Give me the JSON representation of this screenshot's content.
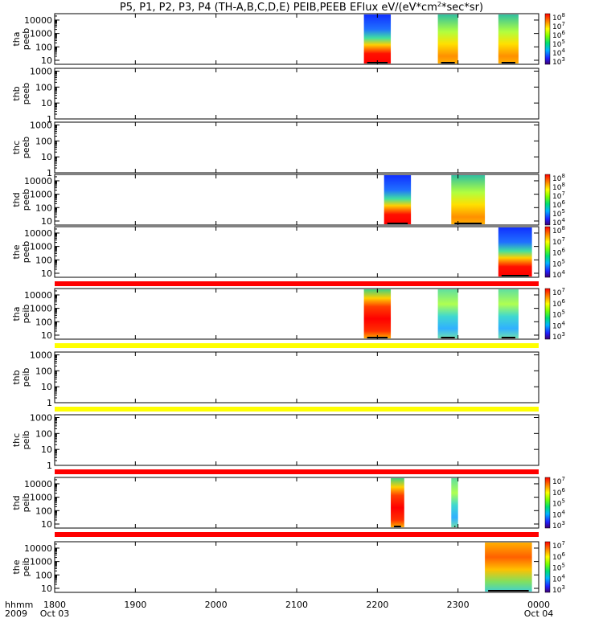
{
  "chart_data": {
    "type": "heatmap",
    "title": "P5, P1, P2, P3, P4 (TH-A,B,C,D,E) PEIB,PEEB EFlux eV/(eV*cm",
    "title_sup": "2",
    "title_tail": "*sec*sr)",
    "x_axis": {
      "ticks": [
        "1800",
        "1900",
        "2000",
        "2100",
        "2200",
        "2300",
        "0000"
      ],
      "tick_hours": [
        18,
        19,
        20,
        21,
        22,
        23,
        24
      ],
      "date_start": "Oct 03",
      "date_end": "Oct 04",
      "range_hours": [
        18,
        24
      ],
      "label_top": "hhmm",
      "label_bottom": "2009"
    },
    "panels": [
      {
        "probe": "tha",
        "product": "peeb",
        "log_y": true,
        "y_ticks": [
          "10000",
          "1000",
          "100",
          "10"
        ],
        "y_tick_values": [
          10000,
          1000,
          100,
          10
        ],
        "ylim": [
          5,
          30000
        ],
        "colorbar": {
          "exponents": [
            "8",
            "7",
            "6",
            "5",
            "4",
            "3"
          ],
          "mantissa": "10",
          "min_exp": 3,
          "max_exp": 8
        },
        "data_blocks": [
          {
            "start": "2150",
            "end": "2210",
            "style": "hot_low"
          },
          {
            "start": "2245",
            "end": "2300",
            "style": "mix"
          },
          {
            "start": "2330",
            "end": "2345",
            "style": "mix"
          }
        ],
        "status_bar": null
      },
      {
        "probe": "thb",
        "product": "peeb",
        "log_y": true,
        "y_ticks": [
          "1000",
          "100",
          "10",
          "1"
        ],
        "y_tick_values": [
          1000,
          100,
          10,
          1
        ],
        "ylim": [
          1,
          1500
        ],
        "colorbar": null,
        "data_blocks": [],
        "status_bar": null
      },
      {
        "probe": "thc",
        "product": "peeb",
        "log_y": true,
        "y_ticks": [
          "1000",
          "100",
          "10",
          "1"
        ],
        "y_tick_values": [
          1000,
          100,
          10,
          1
        ],
        "ylim": [
          1,
          1500
        ],
        "colorbar": null,
        "data_blocks": [],
        "status_bar": null
      },
      {
        "probe": "thd",
        "product": "peeb",
        "log_y": true,
        "y_ticks": [
          "10000",
          "1000",
          "100",
          "10"
        ],
        "y_tick_values": [
          10000,
          1000,
          100,
          10
        ],
        "ylim": [
          5,
          30000
        ],
        "colorbar": {
          "exponents": [
            "8",
            "8",
            "7",
            "6",
            "5",
            "4"
          ],
          "mantissa": "10",
          "min_exp": 3,
          "max_exp": 8
        },
        "data_blocks": [
          {
            "start": "2205",
            "end": "2225",
            "style": "hot_low"
          },
          {
            "start": "2255",
            "end": "2320",
            "style": "mix"
          }
        ],
        "status_bar": null
      },
      {
        "probe": "the",
        "product": "peeb",
        "log_y": true,
        "y_ticks": [
          "10000",
          "1000",
          "100",
          "10"
        ],
        "y_tick_values": [
          10000,
          1000,
          100,
          10
        ],
        "ylim": [
          5,
          30000
        ],
        "colorbar": {
          "exponents": [
            "8",
            "7",
            "6",
            "5",
            "4"
          ],
          "mantissa": "10",
          "min_exp": 3,
          "max_exp": 8
        },
        "data_blocks": [
          {
            "start": "2330",
            "end": "2355",
            "style": "hot_low"
          }
        ],
        "status_bar": "red"
      },
      {
        "probe": "tha",
        "product": "peib",
        "log_y": true,
        "y_ticks": [
          "10000",
          "1000",
          "100",
          "10"
        ],
        "y_tick_values": [
          10000,
          1000,
          100,
          10
        ],
        "ylim": [
          5,
          30000
        ],
        "colorbar": {
          "exponents": [
            "7",
            "6",
            "5",
            "4",
            "3"
          ],
          "mantissa": "10",
          "min_exp": 3,
          "max_exp": 7
        },
        "data_blocks": [
          {
            "start": "2150",
            "end": "2210",
            "style": "hot_full"
          },
          {
            "start": "2245",
            "end": "2300",
            "style": "ion"
          },
          {
            "start": "2330",
            "end": "2345",
            "style": "ion"
          }
        ],
        "status_bar": "yellow"
      },
      {
        "probe": "thb",
        "product": "peib",
        "log_y": true,
        "y_ticks": [
          "1000",
          "100",
          "10",
          "1"
        ],
        "y_tick_values": [
          1000,
          100,
          10,
          1
        ],
        "ylim": [
          1,
          1500
        ],
        "colorbar": null,
        "data_blocks": [],
        "status_bar": "yellow"
      },
      {
        "probe": "thc",
        "product": "peib",
        "log_y": true,
        "y_ticks": [
          "1000",
          "100",
          "10",
          "1"
        ],
        "y_tick_values": [
          1000,
          100,
          10,
          1
        ],
        "ylim": [
          1,
          1500
        ],
        "colorbar": null,
        "data_blocks": [],
        "status_bar": "red"
      },
      {
        "probe": "thd",
        "product": "peib",
        "log_y": true,
        "y_ticks": [
          "10000",
          "1000",
          "100",
          "10"
        ],
        "y_tick_values": [
          10000,
          1000,
          100,
          10
        ],
        "ylim": [
          5,
          30000
        ],
        "colorbar": {
          "exponents": [
            "7",
            "6",
            "5",
            "4",
            "3"
          ],
          "mantissa": "10",
          "min_exp": 3,
          "max_exp": 7
        },
        "data_blocks": [
          {
            "start": "2210",
            "end": "2220",
            "style": "hot_full"
          },
          {
            "start": "2255",
            "end": "2300",
            "style": "ion"
          }
        ],
        "status_bar": "red"
      },
      {
        "probe": "the",
        "product": "peib",
        "log_y": true,
        "y_ticks": [
          "10000",
          "1000",
          "100",
          "10"
        ],
        "y_tick_values": [
          10000,
          1000,
          100,
          10
        ],
        "ylim": [
          5,
          30000
        ],
        "colorbar": {
          "exponents": [
            "7",
            "6",
            "5",
            "4",
            "3"
          ],
          "mantissa": "10",
          "min_exp": 3,
          "max_exp": 7
        },
        "data_blocks": [
          {
            "start": "2320",
            "end": "2355",
            "style": "ion_warm"
          }
        ],
        "status_bar": null
      }
    ]
  }
}
